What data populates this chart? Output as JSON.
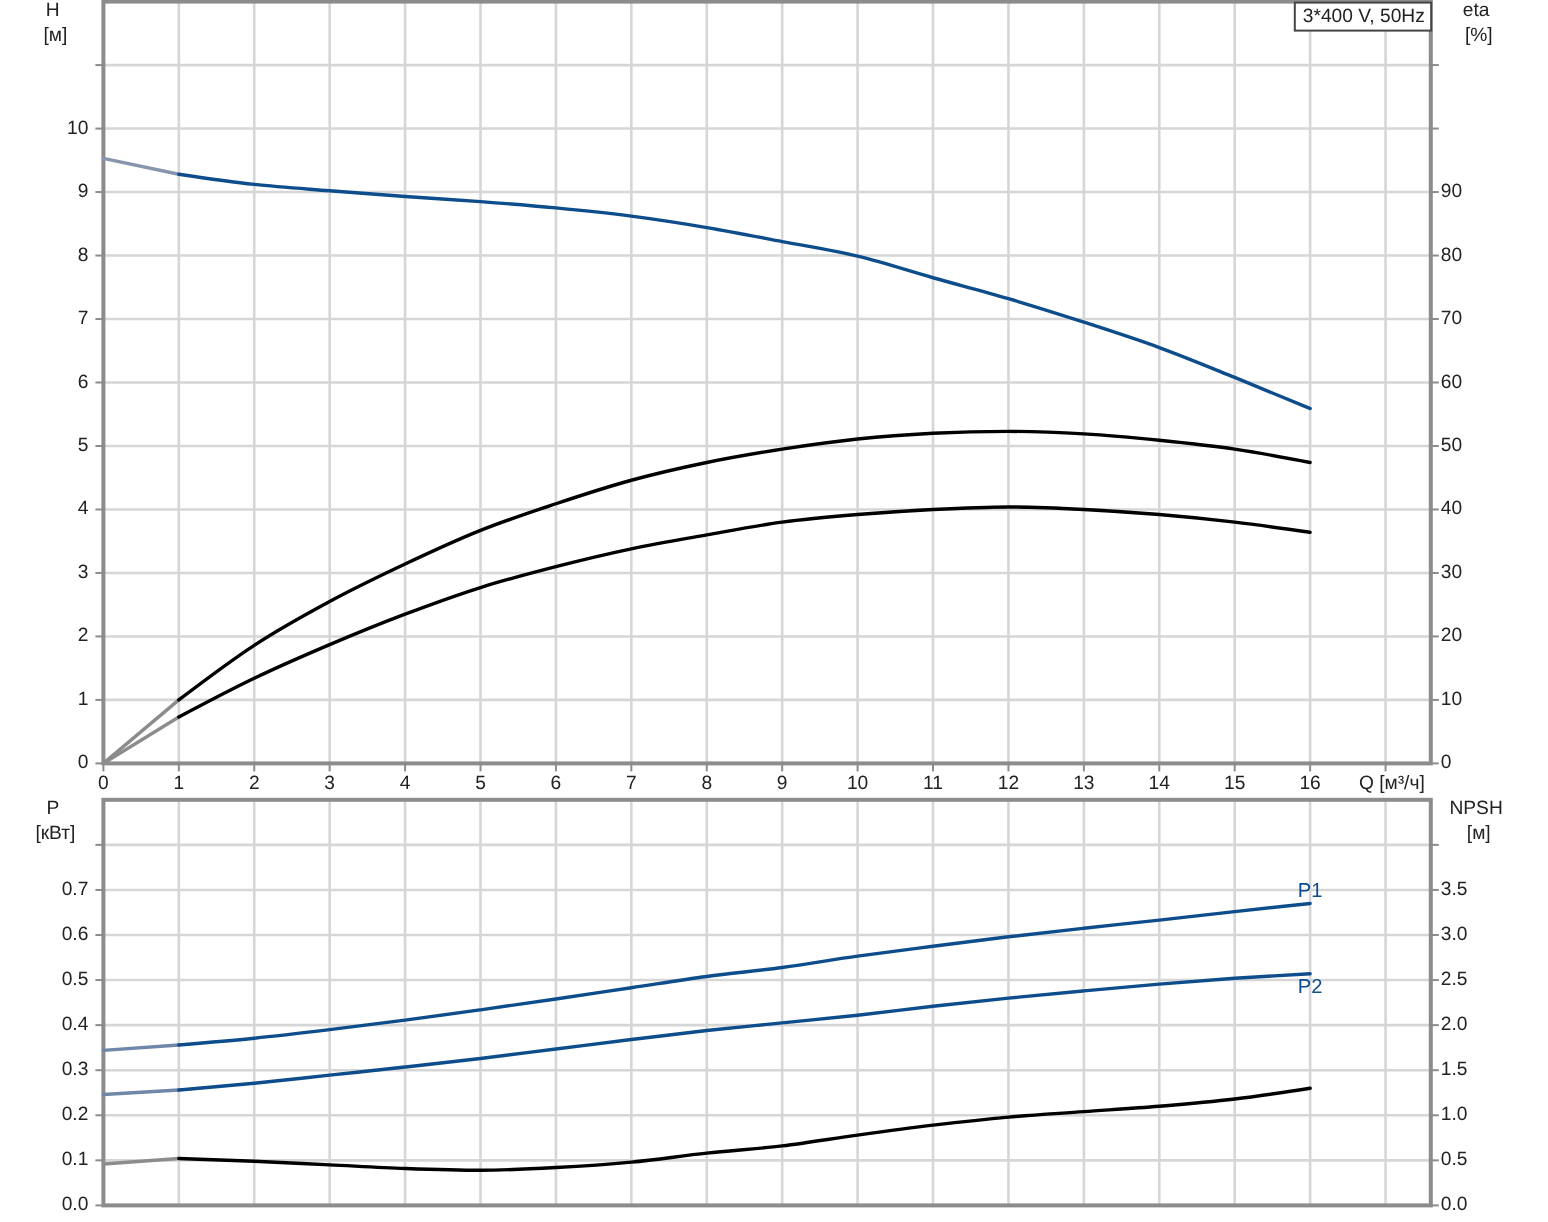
{
  "chart_data": [
    {
      "type": "line",
      "title": "3*400 V, 50Hz",
      "xlabel": "Q [м³/ч]",
      "ylabel": "H [м]",
      "y2label": "eta [%]",
      "xlim": [
        0,
        17.6
      ],
      "xticks": [
        0,
        1,
        2,
        3,
        4,
        5,
        6,
        7,
        8,
        9,
        10,
        11,
        12,
        13,
        14,
        15,
        16,
        {
          "value": 17,
          "label": null
        }
      ],
      "ylim": [
        0,
        12
      ],
      "yticks": [
        0,
        1,
        2,
        3,
        4,
        5,
        6,
        7,
        8,
        9,
        10,
        {
          "value": 11,
          "label": null
        }
      ],
      "y2lim": [
        0,
        120
      ],
      "y2ticks": [
        0,
        10,
        20,
        30,
        40,
        50,
        60,
        70,
        80,
        90,
        {
          "value": 100,
          "label": null
        },
        {
          "value": 110,
          "label": null
        }
      ],
      "grid": true,
      "series": [
        {
          "x": [
            0,
            1
          ],
          "values": [
            9.53,
            9.28
          ],
          "color": "#8796ad"
        },
        {
          "x": [
            1,
            2,
            3,
            4,
            5,
            6,
            7,
            8,
            9,
            10,
            11,
            12,
            13,
            14,
            15,
            16
          ],
          "values": [
            9.28,
            9.12,
            9.02,
            8.93,
            8.85,
            8.75,
            8.62,
            8.44,
            8.22,
            7.99,
            7.65,
            7.32,
            6.95,
            6.55,
            6.08,
            5.59
          ],
          "color": "#0e4d8c"
        },
        {
          "x": [
            0,
            1
          ],
          "values": [
            0,
            10
          ],
          "color": "#8c8c8c",
          "axis": "y2"
        },
        {
          "x": [
            1,
            2,
            3,
            4,
            5,
            6,
            7,
            8,
            9,
            10,
            11,
            12,
            13,
            14,
            15,
            16
          ],
          "values": [
            10,
            18.6,
            25.5,
            31.4,
            36.7,
            40.9,
            44.6,
            47.4,
            49.5,
            51.1,
            52.0,
            52.3,
            51.9,
            50.9,
            49.5,
            47.4
          ],
          "color": "#000000",
          "axis": "y2"
        },
        {
          "x": [
            0,
            1
          ],
          "values": [
            0,
            7.3
          ],
          "color": "#8c8c8c",
          "axis": "y2"
        },
        {
          "x": [
            1,
            2,
            3,
            4,
            5,
            6,
            7,
            8,
            9,
            10,
            11,
            12,
            13,
            14,
            15,
            16
          ],
          "values": [
            7.3,
            13.4,
            18.7,
            23.5,
            27.7,
            31.0,
            33.8,
            36.0,
            38.0,
            39.2,
            40.0,
            40.4,
            40.0,
            39.2,
            38.0,
            36.4
          ],
          "color": "#000000",
          "axis": "y2"
        }
      ]
    },
    {
      "type": "line",
      "ylabel": "P [кВт]",
      "y2label": "NPSH [м]",
      "xlim": [
        0,
        17.6
      ],
      "xticks": [
        0,
        1,
        2,
        3,
        4,
        5,
        6,
        7,
        8,
        9,
        10,
        11,
        12,
        13,
        14,
        15,
        16,
        17
      ],
      "ylim": [
        0,
        0.9
      ],
      "yticks": [
        {
          "value": 0,
          "label": "0.0"
        },
        0.1,
        0.2,
        0.3,
        0.4,
        0.5,
        0.6,
        0.7,
        {
          "value": 0.8,
          "label": null
        }
      ],
      "y2lim": [
        0,
        4.5
      ],
      "y2ticks": [
        {
          "value": 0,
          "label": "0.0"
        },
        0.5,
        {
          "value": 1,
          "label": "1.0"
        },
        1.5,
        {
          "value": 2,
          "label": "2.0"
        },
        2.5,
        {
          "value": 3,
          "label": "3.0"
        },
        3.5,
        {
          "value": 4,
          "label": null
        }
      ],
      "tick_labels": "y",
      "grid": true,
      "series": [
        {
          "x": [
            0,
            1
          ],
          "values": [
            0.344,
            0.356
          ],
          "color": "#6f87a8"
        },
        {
          "name": "P1",
          "x": [
            1,
            2,
            3,
            4,
            5,
            6,
            7,
            8,
            9,
            10,
            11,
            12,
            13,
            14,
            15,
            16
          ],
          "values": [
            0.356,
            0.371,
            0.39,
            0.411,
            0.434,
            0.458,
            0.483,
            0.508,
            0.528,
            0.553,
            0.575,
            0.596,
            0.615,
            0.633,
            0.652,
            0.67
          ],
          "color": "#0e4d8c"
        },
        {
          "x": [
            0,
            1
          ],
          "values": [
            0.246,
            0.256
          ],
          "color": "#6f87a8"
        },
        {
          "name": "P2",
          "x": [
            1,
            2,
            3,
            4,
            5,
            6,
            7,
            8,
            9,
            10,
            11,
            12,
            13,
            14,
            15,
            16
          ],
          "values": [
            0.256,
            0.271,
            0.289,
            0.307,
            0.326,
            0.347,
            0.368,
            0.388,
            0.405,
            0.422,
            0.442,
            0.46,
            0.476,
            0.491,
            0.504,
            0.514
          ],
          "color": "#0e4d8c"
        },
        {
          "x": [
            0,
            1
          ],
          "values": [
            0.46,
            0.52
          ],
          "color": "#8c8c8c",
          "axis": "y2"
        },
        {
          "x": [
            1,
            2,
            3,
            4,
            5,
            6,
            7,
            8,
            9,
            10,
            11,
            12,
            13,
            14,
            15,
            16
          ],
          "values": [
            0.52,
            0.49,
            0.45,
            0.41,
            0.39,
            0.42,
            0.48,
            0.58,
            0.66,
            0.78,
            0.89,
            0.98,
            1.04,
            1.1,
            1.18,
            1.3
          ],
          "color": "#000000",
          "axis": "y2"
        }
      ]
    }
  ]
}
